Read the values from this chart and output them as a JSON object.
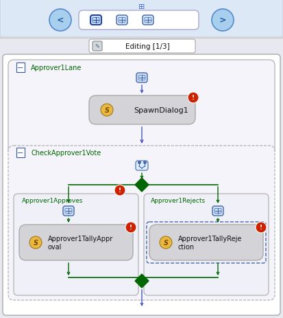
{
  "fig_w": 4.13,
  "fig_h": 4.64,
  "dpi": 100,
  "bg_color": "#e8e8f0",
  "panel_bg": "#ffffff",
  "toolbar_bg": "#dce8f5",
  "node_fill": "#d4d4d8",
  "node_stroke": "#999999",
  "lane_fill": "#f4f4fa",
  "lane_fill2": "#eeeeee",
  "green": "#006600",
  "blue_arrow": "#4455bb",
  "red_badge": "#cc2200",
  "icon_fill": "#cce0f8",
  "icon_stroke": "#4466aa",
  "toolbar_text": "Editing [1/3]",
  "spawn_label": "SpawnDialog1",
  "tally_appr_label": "Approver1TallyAppr\noval",
  "tally_rej_label": "Approver1TallyReje\nction",
  "lane1_label": "Approver1Lane",
  "lane2_label": "CheckApprover1Vote",
  "lane_appr_label": "Approver1Approves",
  "lane_rej_label": "Approver1Rejects"
}
